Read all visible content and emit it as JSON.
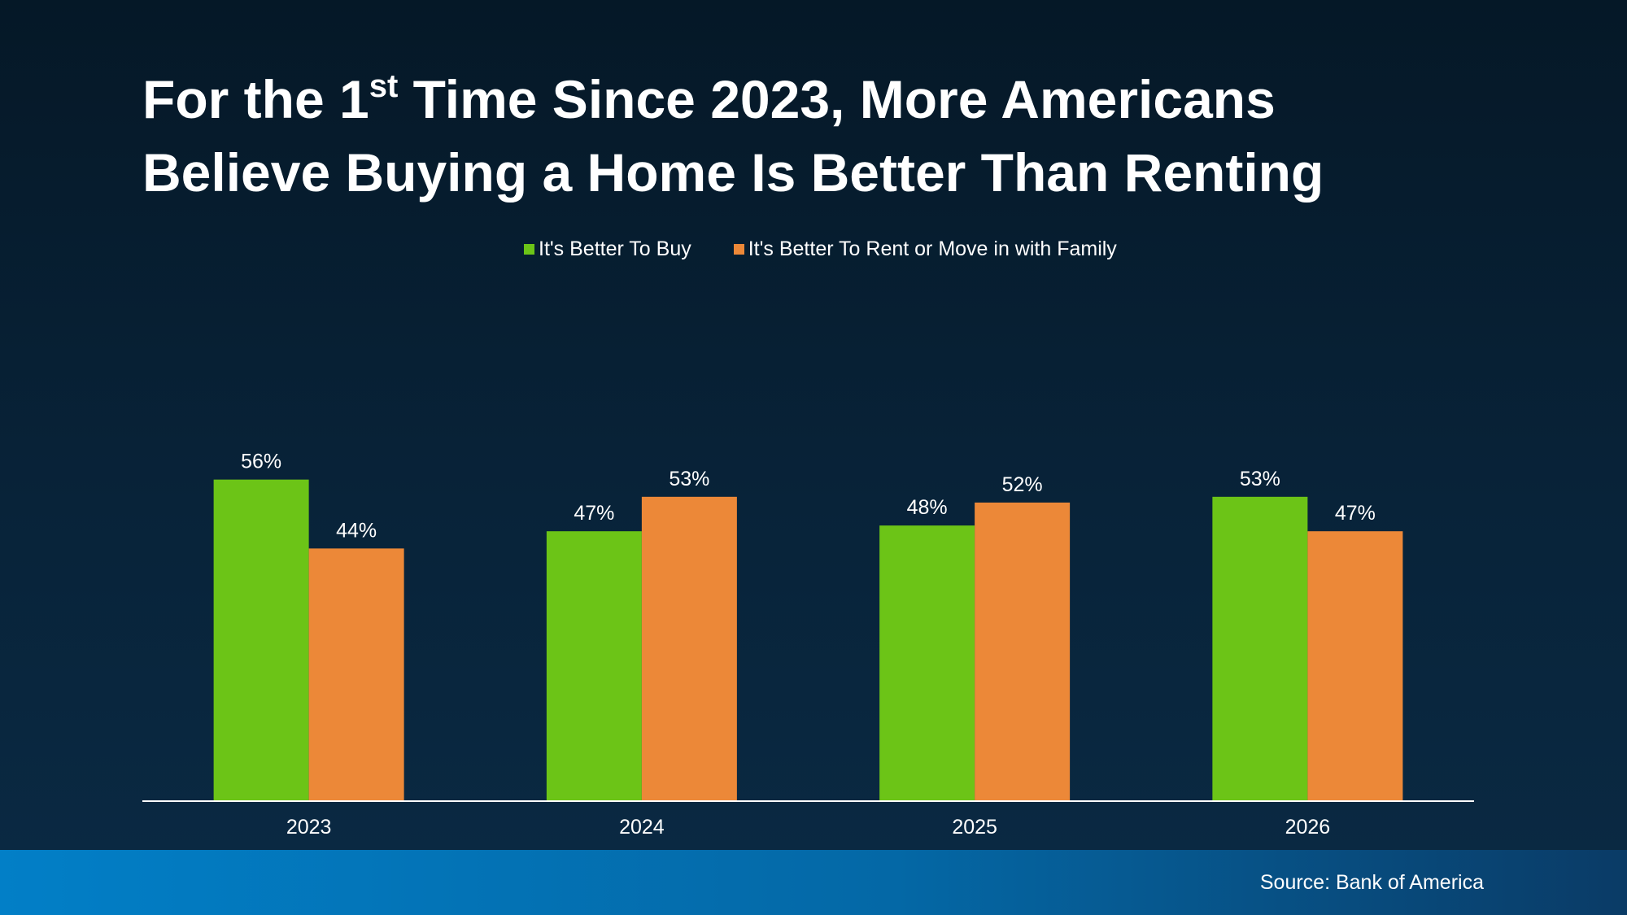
{
  "title": {
    "line1_prefix": "For the 1",
    "line1_sup": "st",
    "line1_suffix": " Time Since 2023, More Americans",
    "line2": "Believe Buying a Home Is Better Than Renting"
  },
  "source": "Source: Bank of America",
  "colors": {
    "buy": "#6cc417",
    "rent": "#ec8838",
    "text": "#ffffff",
    "axis": "#ffffff"
  },
  "chart_data": {
    "type": "bar",
    "categories": [
      "2023",
      "2024",
      "2025",
      "2026"
    ],
    "series": [
      {
        "name": "It's Better To Buy",
        "values": [
          56,
          47,
          48,
          53
        ],
        "labels": [
          "56%",
          "47%",
          "48%",
          "53%"
        ]
      },
      {
        "name": "It's Better To Rent or Move in with Family",
        "values": [
          44,
          53,
          52,
          47
        ],
        "labels": [
          "44%",
          "53%",
          "52%",
          "47%"
        ]
      }
    ],
    "ylim": [
      0,
      60
    ],
    "grid": false,
    "legend": "top-center"
  }
}
